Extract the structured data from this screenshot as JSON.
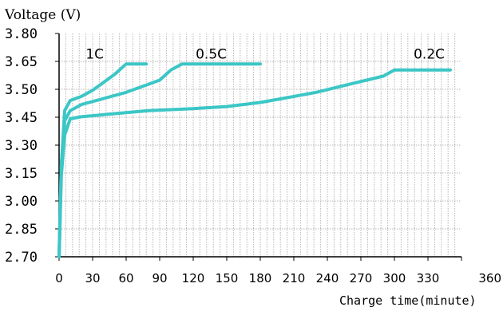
{
  "chart_data": {
    "type": "line",
    "ylabel": "Voltage (V)",
    "xlabel": "Charge time(minute)",
    "xlim": [
      0,
      360
    ],
    "ylim": [
      2.7,
      3.8
    ],
    "y_ticks": [
      "3.80",
      "3.65",
      "3.50",
      "3.45",
      "3.30",
      "3.15",
      "3.00",
      "2.85",
      "2.70"
    ],
    "x_ticks": [
      "0",
      "30",
      "60",
      "90",
      "120",
      "150",
      "180",
      "210",
      "240",
      "270",
      "300",
      "330",
      "360"
    ],
    "grid": true,
    "line_color": "#3cc6c6",
    "series": [
      {
        "name": "1C",
        "x": [
          0,
          2,
          5,
          10,
          20,
          30,
          40,
          50,
          60,
          78
        ],
        "y": [
          2.7,
          3.15,
          3.42,
          3.47,
          3.49,
          3.52,
          3.56,
          3.6,
          3.65,
          3.65
        ]
      },
      {
        "name": "0.5C",
        "x": [
          0,
          2,
          5,
          10,
          20,
          40,
          60,
          80,
          90,
          100,
          110,
          180
        ],
        "y": [
          2.7,
          3.15,
          3.37,
          3.42,
          3.45,
          3.48,
          3.51,
          3.55,
          3.57,
          3.62,
          3.65,
          3.65
        ]
      },
      {
        "name": "0.2C",
        "x": [
          0,
          2,
          5,
          10,
          20,
          40,
          60,
          80,
          100,
          120,
          150,
          180,
          200,
          230,
          260,
          290,
          300,
          350
        ],
        "y": [
          2.7,
          3.1,
          3.3,
          3.38,
          3.39,
          3.4,
          3.41,
          3.42,
          3.425,
          3.43,
          3.44,
          3.46,
          3.48,
          3.51,
          3.55,
          3.59,
          3.62,
          3.62
        ]
      }
    ]
  }
}
